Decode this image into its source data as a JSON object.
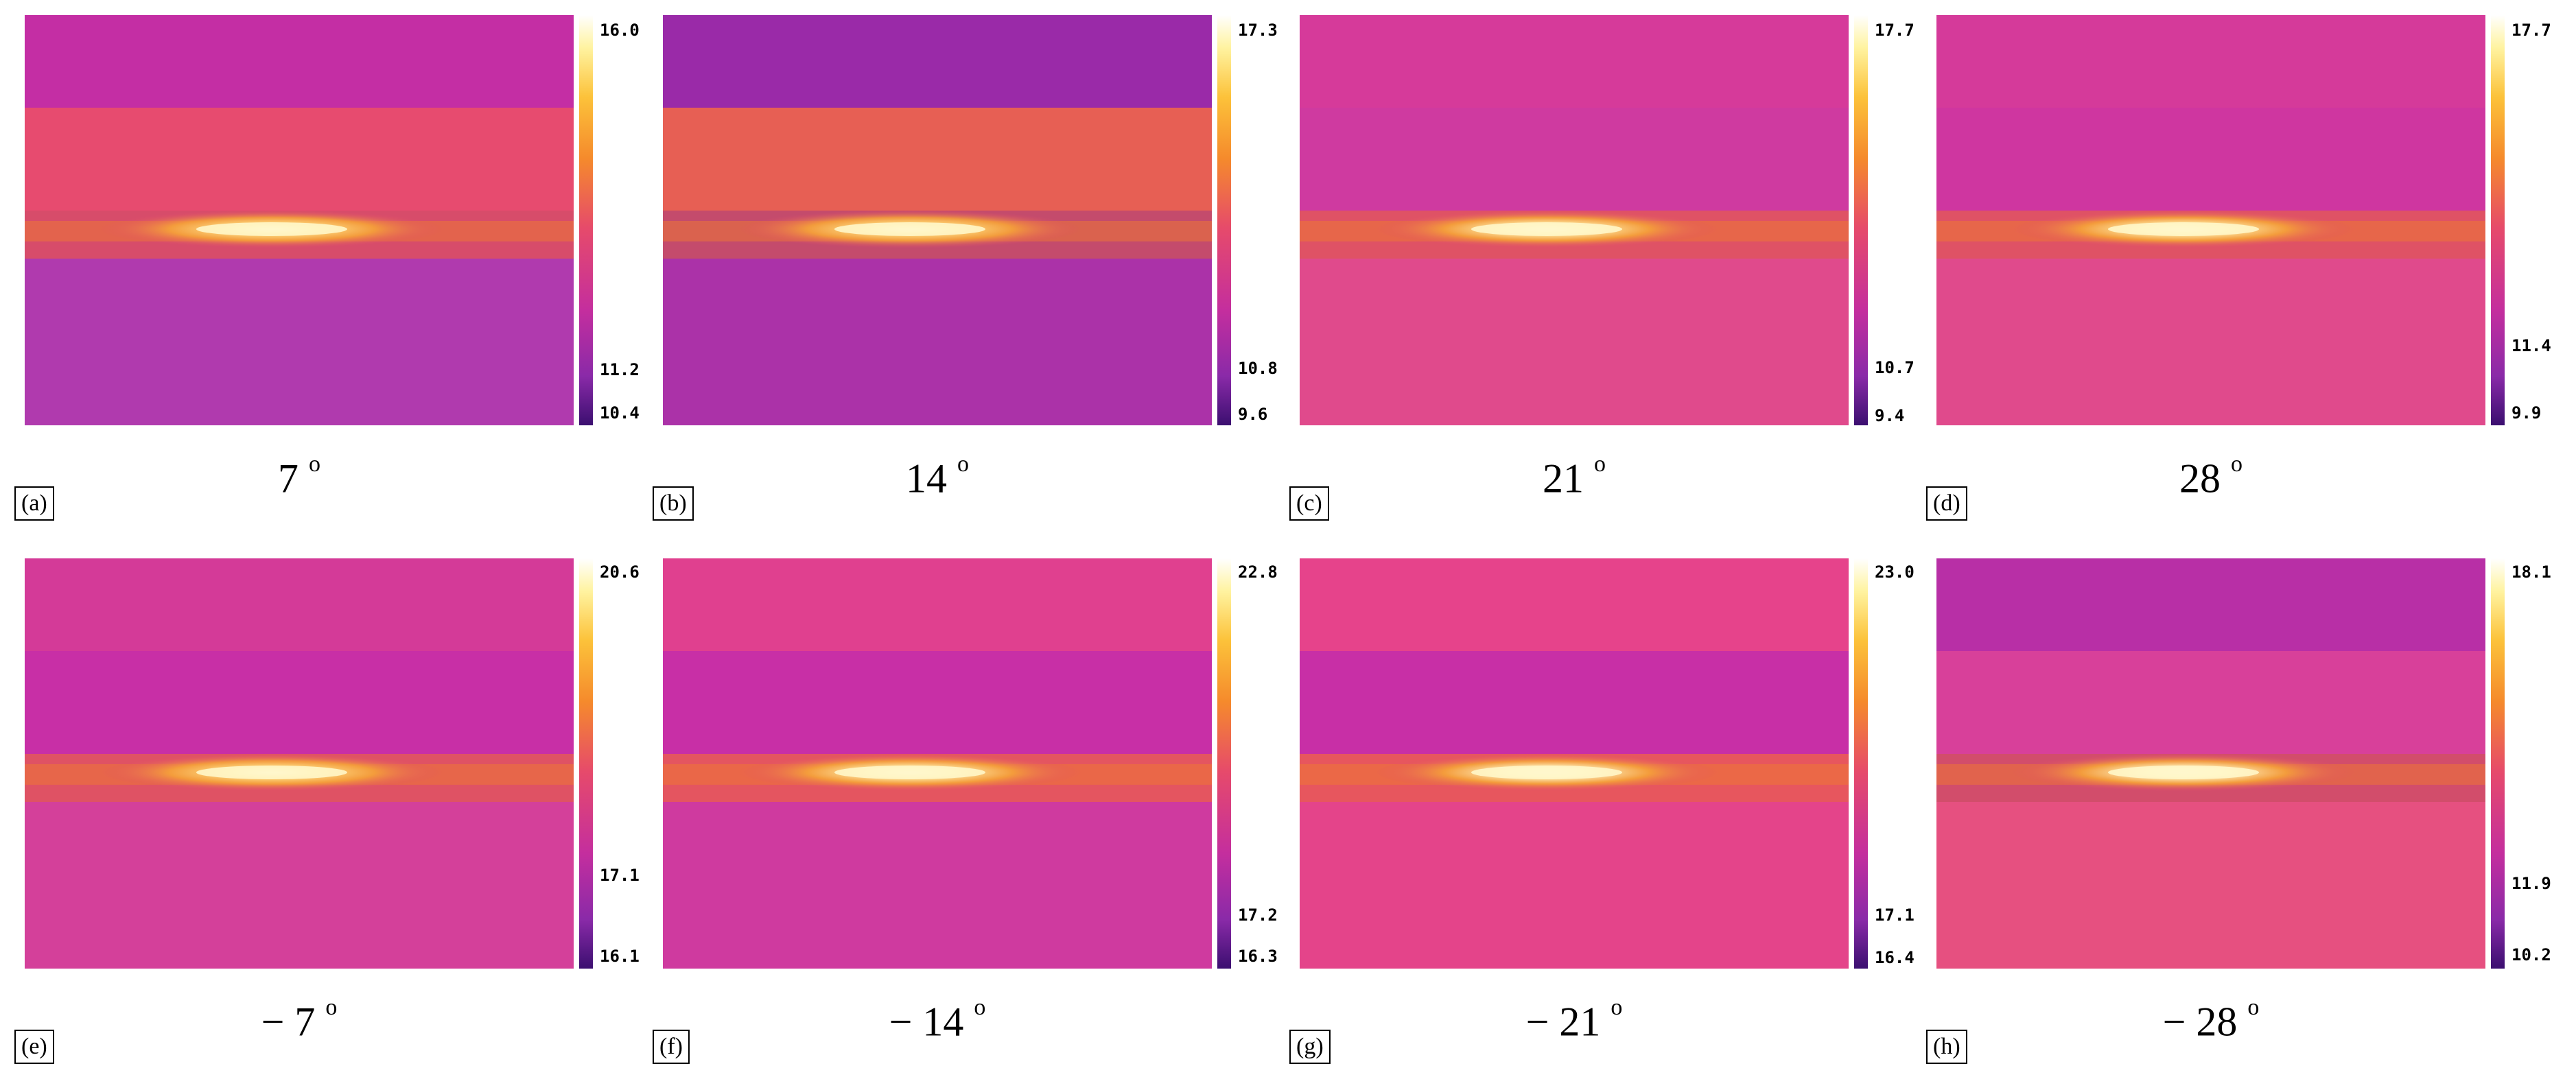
{
  "panels": [
    {
      "label": "(a)",
      "angle": "7",
      "degree": "o",
      "colorbar": {
        "max": "16.0",
        "mid": "11.2",
        "min": "10.4"
      },
      "palette": {
        "top": "#c42ea4",
        "band": "#e74b6f",
        "mid": "#c23aa4",
        "bottom": "#b03aae",
        "hot": "#ffe08a"
      }
    },
    {
      "label": "(b)",
      "angle": "14",
      "degree": "o",
      "colorbar": {
        "max": "17.3",
        "mid": "10.8",
        "min": "9.6"
      },
      "palette": {
        "top": "#9a2aa8",
        "band": "#e75f54",
        "mid": "#c23aa4",
        "bottom": "#ab32a8",
        "hot": "#ffe08a"
      }
    },
    {
      "label": "(c)",
      "angle": "21",
      "degree": "o",
      "colorbar": {
        "max": "17.7",
        "mid": "10.7",
        "min": "9.4"
      },
      "palette": {
        "top": "#d63a9a",
        "band": "#cf3aa0",
        "mid": "#d53a93",
        "bottom": "#e04a8c",
        "hot": "#fff0b0"
      }
    },
    {
      "label": "(d)",
      "angle": "28",
      "degree": "o",
      "colorbar": {
        "max": "17.7",
        "mid": "11.4",
        "min": "9.9"
      },
      "palette": {
        "top": "#d53a9a",
        "band": "#cf36a0",
        "mid": "#d53a93",
        "bottom": "#e04a8c",
        "hot": "#fff0b0"
      }
    },
    {
      "label": "(e)",
      "angle": "7",
      "prefix": "−",
      "degree": "o",
      "colorbar": {
        "max": "20.6",
        "mid": "17.1",
        "min": "16.1"
      },
      "palette": {
        "top": "#d43a98",
        "band": "#c82fa6",
        "mid": "#b63aa8",
        "bottom": "#d4409a",
        "hot": "#ffe08a"
      }
    },
    {
      "label": "(f)",
      "angle": "14",
      "prefix": "−",
      "degree": "o",
      "colorbar": {
        "max": "22.8",
        "mid": "17.2",
        "min": "16.3"
      },
      "palette": {
        "top": "#e0408f",
        "band": "#c82fa6",
        "mid": "#d43a96",
        "bottom": "#cf3a9f",
        "hot": "#fff0b0"
      }
    },
    {
      "label": "(g)",
      "angle": "21",
      "prefix": "−",
      "degree": "o",
      "colorbar": {
        "max": "23.0",
        "mid": "17.1",
        "min": "16.4"
      },
      "palette": {
        "top": "#e6438b",
        "band": "#c82fa6",
        "mid": "#e04488",
        "bottom": "#e4448a",
        "hot": "#fff6c8"
      }
    },
    {
      "label": "(h)",
      "angle": "28",
      "prefix": "−",
      "degree": "o",
      "colorbar": {
        "max": "18.1",
        "mid": "11.9",
        "min": "10.2"
      },
      "palette": {
        "top": "#b82fa6",
        "band": "#d8409a",
        "mid": "#df4a8a",
        "bottom": "#e65080",
        "hot": "#fff6c8"
      }
    }
  ]
}
